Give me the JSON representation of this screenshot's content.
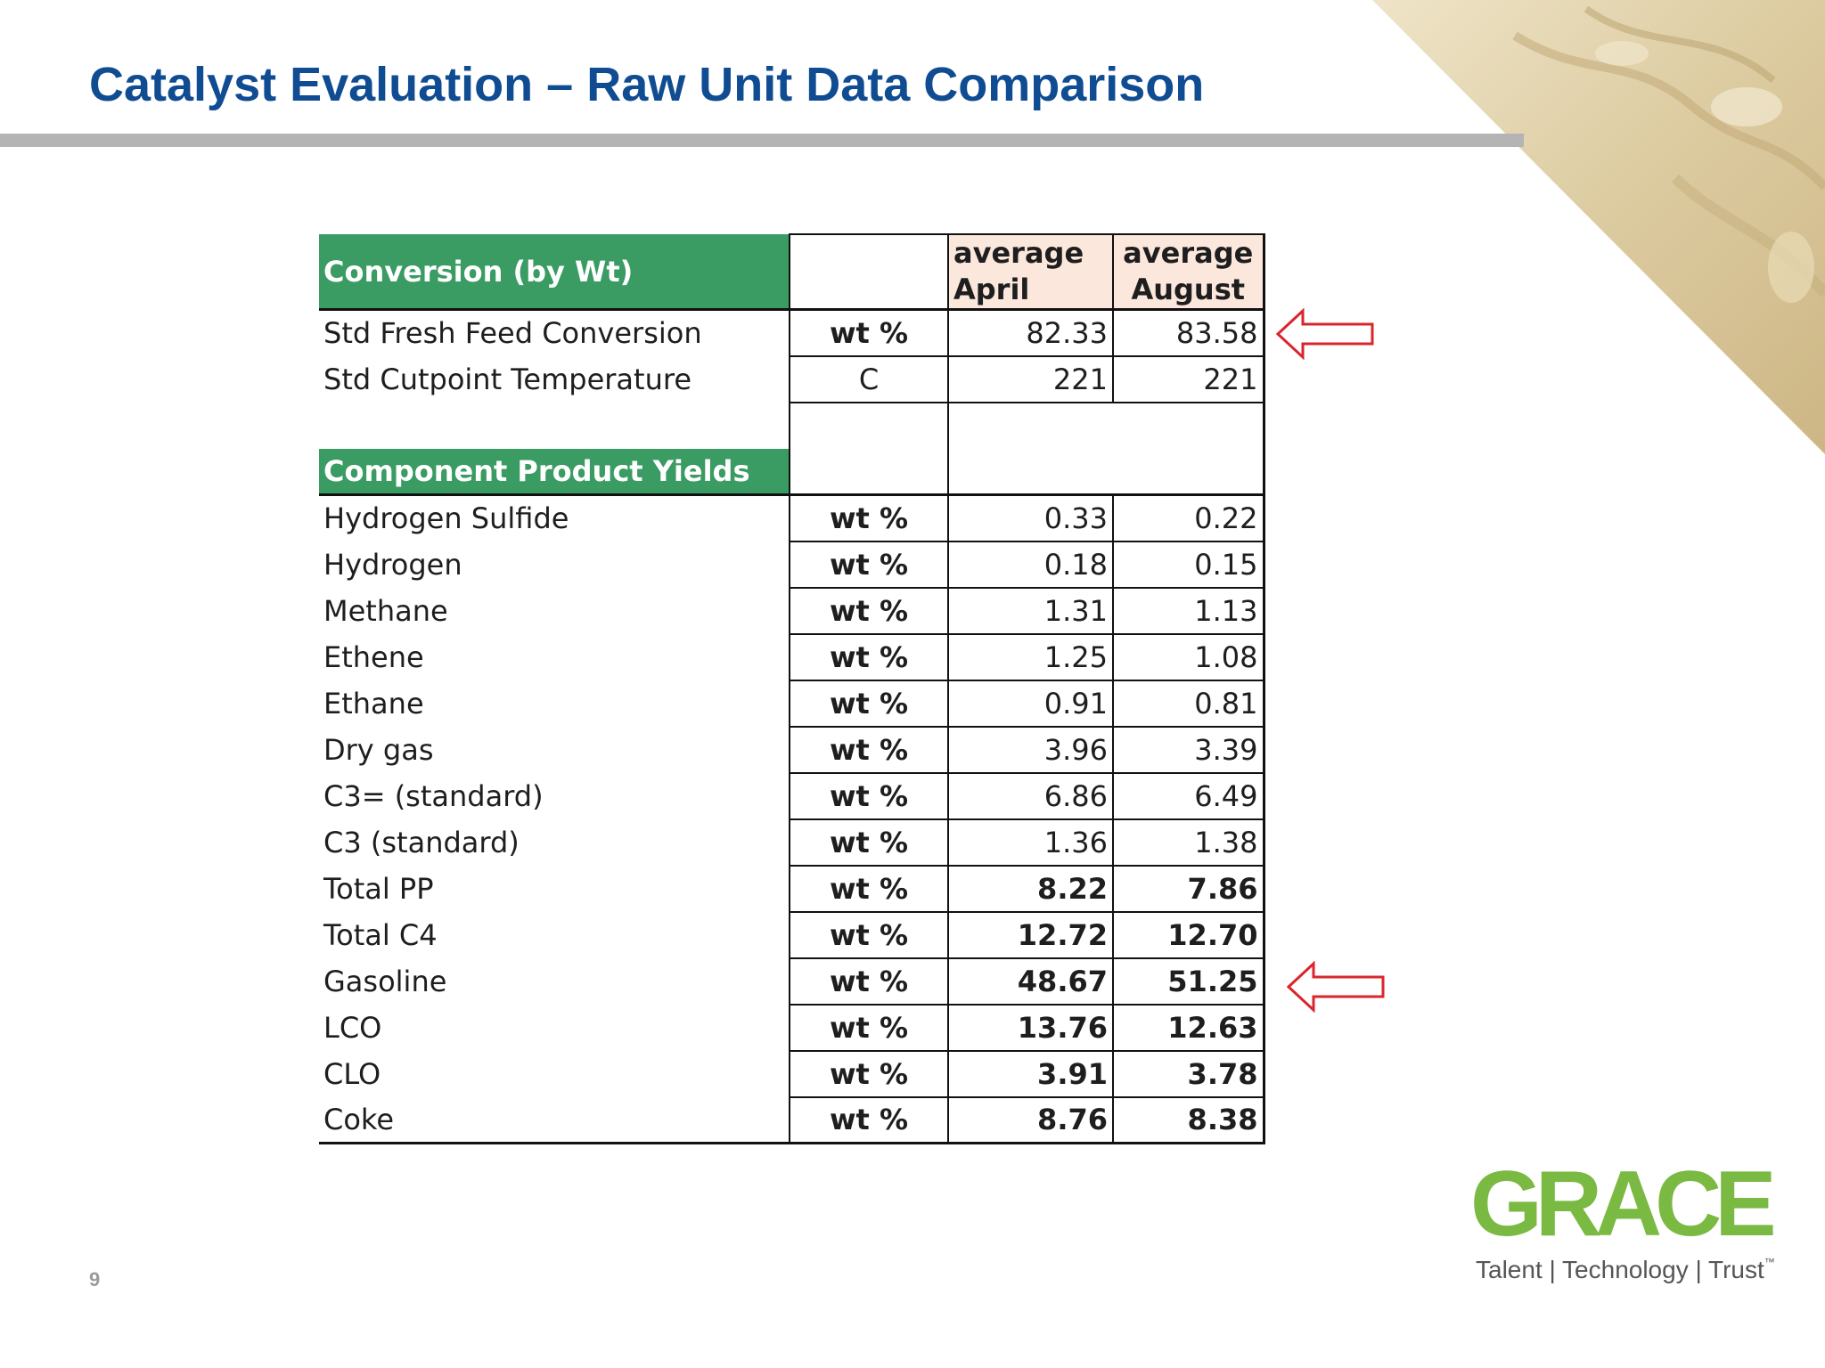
{
  "slide": {
    "title": "Catalyst Evaluation – Raw Unit Data Comparison",
    "page_number": "9"
  },
  "table": {
    "section1_header": "Conversion (by Wt)",
    "col_april_line1": "average",
    "col_april_line2": "April",
    "col_august_line1": "average",
    "col_august_line2": "August",
    "section2_header": "Component Product Yields",
    "conversion_rows": [
      {
        "label": "Std Fresh Feed Conversion",
        "unit": "wt %",
        "april": "82.33",
        "august": "83.58"
      },
      {
        "label": "Std Cutpoint Temperature",
        "unit": "C",
        "april": "221",
        "august": "221"
      }
    ],
    "yield_rows": [
      {
        "label": "Hydrogen Sulfide",
        "unit": "wt %",
        "april": "0.33",
        "august": "0.22"
      },
      {
        "label": "Hydrogen",
        "unit": "wt %",
        "april": "0.18",
        "august": "0.15"
      },
      {
        "label": "Methane",
        "unit": "wt %",
        "april": "1.31",
        "august": "1.13"
      },
      {
        "label": "Ethene",
        "unit": "wt %",
        "april": "1.25",
        "august": "1.08"
      },
      {
        "label": "Ethane",
        "unit": "wt %",
        "april": "0.91",
        "august": "0.81"
      },
      {
        "label": "Dry gas",
        "unit": "wt %",
        "april": "3.96",
        "august": "3.39"
      },
      {
        "label": "C3= (standard)",
        "unit": "wt %",
        "april": "6.86",
        "august": "6.49"
      },
      {
        "label": "C3 (standard)",
        "unit": "wt %",
        "april": "1.36",
        "august": "1.38"
      },
      {
        "label": "Total PP",
        "unit": "wt %",
        "april": "8.22",
        "august": "7.86"
      },
      {
        "label": "Total C4",
        "unit": "wt %",
        "april": "12.72",
        "august": "12.70"
      },
      {
        "label": "Gasoline",
        "unit": "wt %",
        "april": "48.67",
        "august": "51.25"
      },
      {
        "label": "LCO",
        "unit": "wt %",
        "april": "13.76",
        "august": "12.63"
      },
      {
        "label": "CLO",
        "unit": "wt %",
        "april": "3.91",
        "august": "3.78"
      },
      {
        "label": "Coke",
        "unit": "wt %",
        "april": "8.76",
        "august": "8.38"
      }
    ]
  },
  "logo": {
    "wordmark": "GRACE",
    "tagline": "Talent | Technology | Trust",
    "trademark": "™"
  },
  "colors": {
    "title": "#0f4c92",
    "section_header_bg": "#3a9b63",
    "column_header_bg": "#fbe7dc",
    "arrow": "#d9262c",
    "logo_green": "#7ab942"
  },
  "icons": [
    "left-arrow-icon",
    "left-arrow-icon"
  ]
}
